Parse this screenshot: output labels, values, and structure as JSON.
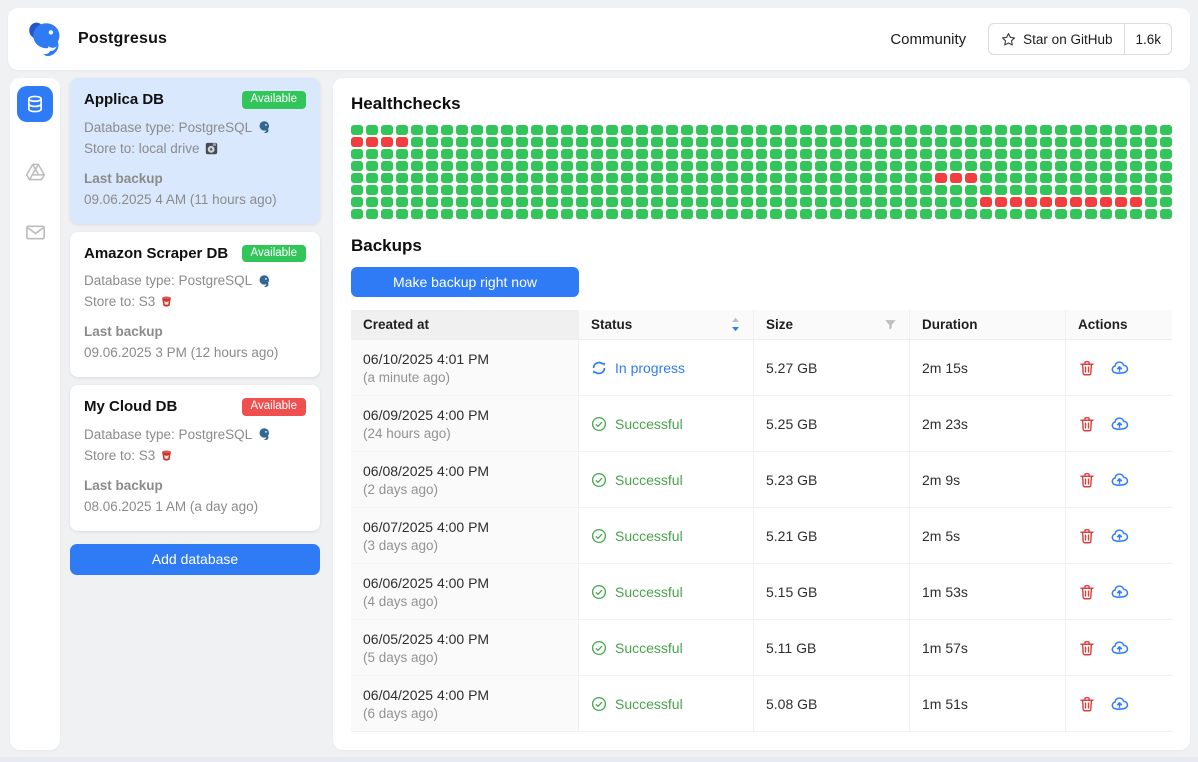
{
  "brand": {
    "name": "Postgresus"
  },
  "header": {
    "community_label": "Community",
    "star_label": "Star on GitHub",
    "star_count": "1.6k"
  },
  "sidebar": {
    "items": [
      {
        "icon": "database-icon",
        "active": true
      },
      {
        "icon": "google-drive-icon",
        "active": false
      },
      {
        "icon": "mail-icon",
        "active": false
      }
    ]
  },
  "colors": {
    "primary": "#2f7bf6",
    "badge_green": "#32c65a",
    "badge_red": "#f04f4f",
    "success_text": "#47a44b",
    "healthy": "#32c65a",
    "unhealthy": "#f23e3e"
  },
  "databases": [
    {
      "name": "Applica DB",
      "badge": "Available",
      "badge_color": "#32c65a",
      "type_label": "Database type: PostgreSQL",
      "store_label": "Store to: local drive",
      "store_icon": "local-drive-icon",
      "last_backup_label": "Last backup",
      "last_backup": "09.06.2025 4 AM (11 hours ago)"
    },
    {
      "name": "Amazon Scraper DB",
      "badge": "Available",
      "badge_color": "#32c65a",
      "type_label": "Database type: PostgreSQL",
      "store_label": "Store to: S3",
      "store_icon": "s3-icon",
      "last_backup_label": "Last backup",
      "last_backup": "09.06.2025 3 PM (12 hours ago)"
    },
    {
      "name": "My Cloud DB",
      "badge": "Available",
      "badge_color": "#f04f4f",
      "type_label": "Database type: PostgreSQL",
      "store_label": "Store to: S3",
      "store_icon": "s3-icon",
      "last_backup_label": "Last backup",
      "last_backup": "08.06.2025 1 AM (a day ago)"
    }
  ],
  "add_database_label": "Add database",
  "healthchecks": {
    "title": "Healthchecks",
    "rows": 8,
    "cols": 55,
    "healthy_color": "#32c65a",
    "unhealthy_color": "#f23e3e",
    "red_cells": [
      {
        "row": 1,
        "from": 0,
        "to": 3
      },
      {
        "row": 4,
        "from": 39,
        "to": 41
      },
      {
        "row": 6,
        "from": 42,
        "to": 52
      }
    ]
  },
  "backups": {
    "title": "Backups",
    "make_backup_label": "Make backup right now",
    "table": {
      "columns": [
        "Created at",
        "Status",
        "Size",
        "Duration",
        "Actions"
      ],
      "rows": [
        {
          "date": "06/10/2025 4:01 PM",
          "ago": "(a minute ago)",
          "status": "In progress",
          "status_type": "in-progress",
          "size": "5.27 GB",
          "duration": "2m 15s"
        },
        {
          "date": "06/09/2025 4:00 PM",
          "ago": "(24 hours ago)",
          "status": "Successful",
          "status_type": "success",
          "size": "5.25 GB",
          "duration": "2m 23s"
        },
        {
          "date": "06/08/2025 4:00 PM",
          "ago": "(2 days ago)",
          "status": "Successful",
          "status_type": "success",
          "size": "5.23 GB",
          "duration": "2m 9s"
        },
        {
          "date": "06/07/2025 4:00 PM",
          "ago": "(3 days ago)",
          "status": "Successful",
          "status_type": "success",
          "size": "5.21 GB",
          "duration": "2m 5s"
        },
        {
          "date": "06/06/2025 4:00 PM",
          "ago": "(4 days ago)",
          "status": "Successful",
          "status_type": "success",
          "size": "5.15 GB",
          "duration": "1m 53s"
        },
        {
          "date": "06/05/2025 4:00 PM",
          "ago": "(5 days ago)",
          "status": "Successful",
          "status_type": "success",
          "size": "5.11 GB",
          "duration": "1m 57s"
        },
        {
          "date": "06/04/2025 4:00 PM",
          "ago": "(6 days ago)",
          "status": "Successful",
          "status_type": "success",
          "size": "5.08 GB",
          "duration": "1m 51s"
        }
      ]
    }
  }
}
